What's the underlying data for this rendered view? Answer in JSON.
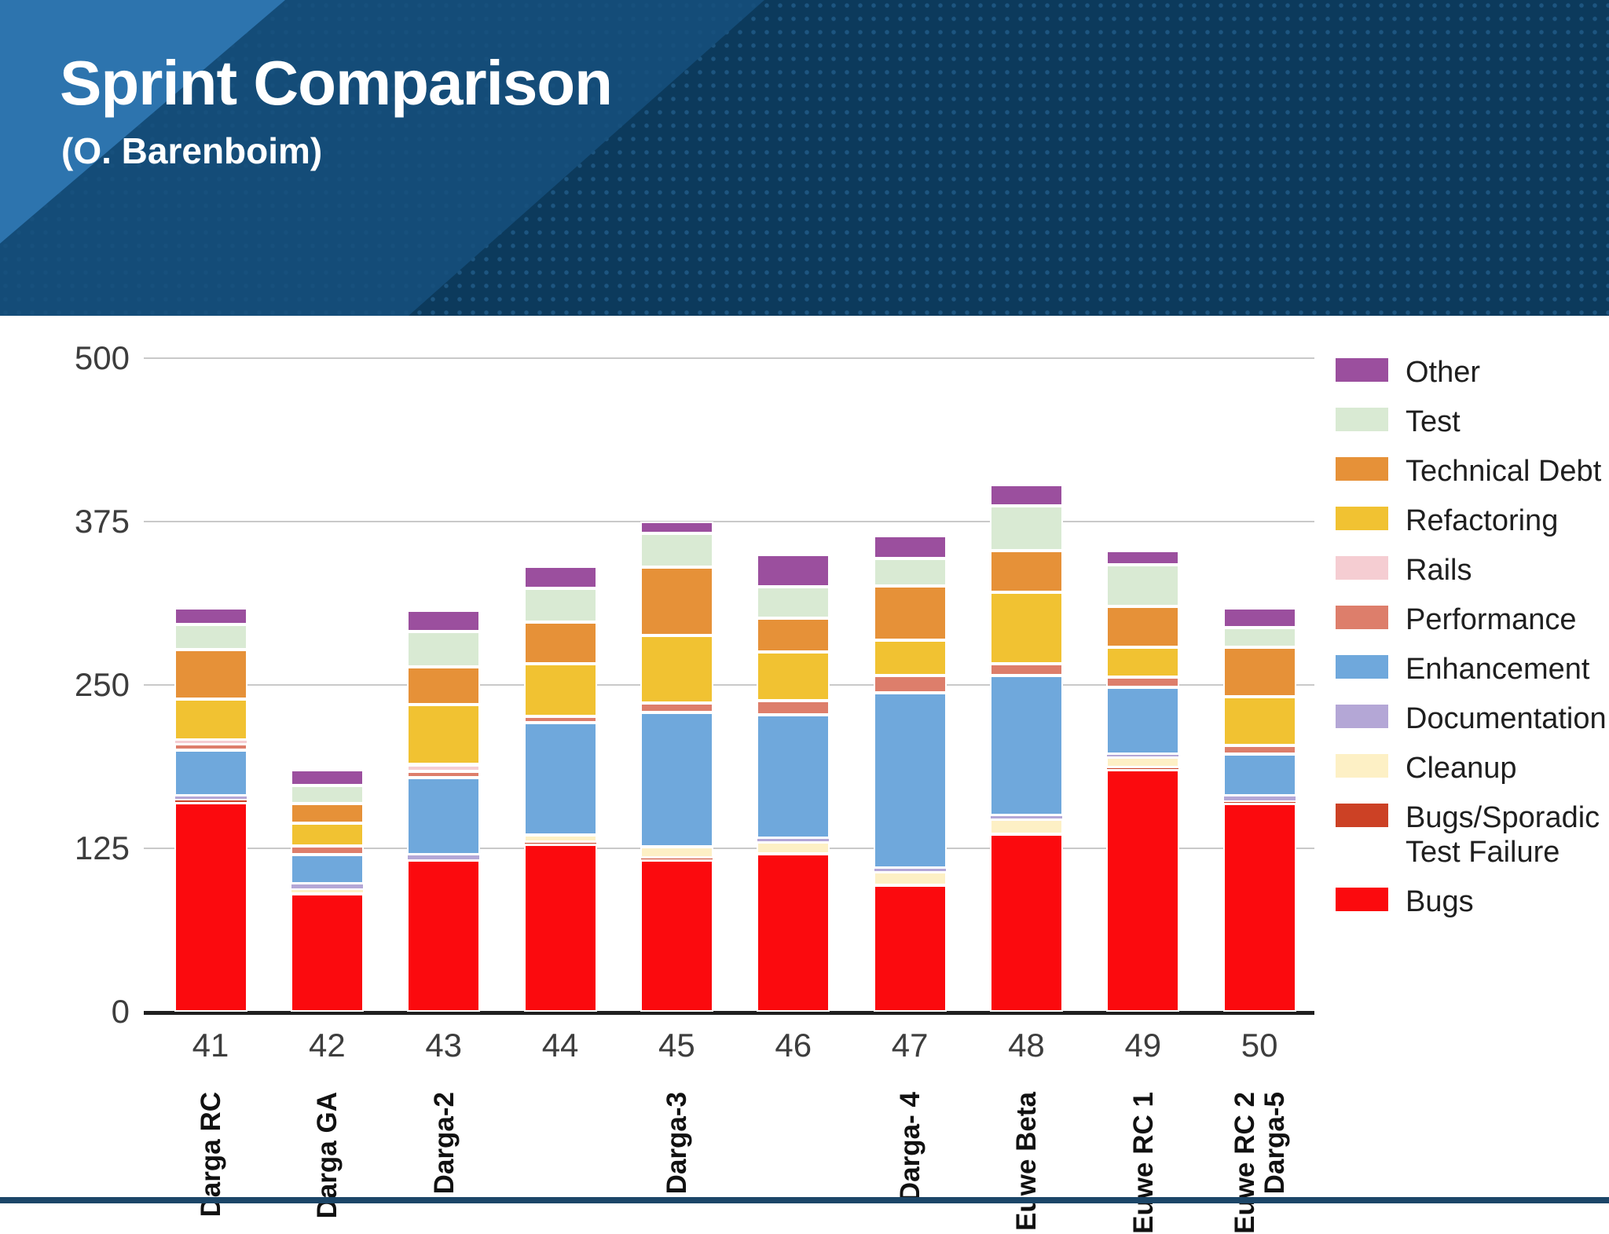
{
  "slide": {
    "title": "Sprint Comparison",
    "subtitle": "(O. Barenboim)"
  },
  "theme": {
    "header_bg": "#0c3a5c",
    "header_band_mid": "#16507d",
    "header_band_light": "#2d74ae",
    "header_dot": "#1d5580",
    "footer_line": "#1c4668",
    "axis_line": "#1f1f1f",
    "gridline": "#c9c9c9",
    "tick_text": "#3d3d3d",
    "label_text": "#111111",
    "legend_text": "#1f1f1f",
    "background": "#ffffff"
  },
  "chart_data": {
    "type": "bar",
    "stacked": true,
    "title": "",
    "xlabel": "",
    "ylabel": "",
    "ylim": [
      0,
      500
    ],
    "yticks": [
      0,
      125,
      250,
      375,
      500
    ],
    "grid": true,
    "legend_position": "right",
    "categories": [
      "41",
      "42",
      "43",
      "44",
      "45",
      "46",
      "47",
      "48",
      "49",
      "50"
    ],
    "category_sublabels": [
      [
        "Darga RC"
      ],
      [
        "Darga GA"
      ],
      [
        "Darga-2"
      ],
      [],
      [
        "Darga-3"
      ],
      [],
      [
        "Darga- 4"
      ],
      [
        "Euwe Beta"
      ],
      [
        "Euwe RC 1"
      ],
      [
        "Euwe RC 2",
        "Darga-5"
      ]
    ],
    "series": [
      {
        "name": "Bugs",
        "color": "#fb0a0e",
        "values": [
          160,
          90,
          116,
          128,
          116,
          121,
          97,
          136,
          185,
          159
        ]
      },
      {
        "name": "Bugs/Sporadic Test Failure",
        "color": "#cc4125",
        "values": [
          2,
          1,
          0,
          2,
          2,
          0,
          0,
          0,
          2,
          2
        ]
      },
      {
        "name": "Cleanup",
        "color": "#fdf0c5",
        "values": [
          0,
          3,
          0,
          5,
          8,
          9,
          10,
          11,
          8,
          0
        ]
      },
      {
        "name": "Documentation",
        "color": "#b4a7d6",
        "values": [
          3,
          4,
          4,
          0,
          0,
          3,
          3,
          3,
          2,
          4
        ]
      },
      {
        "name": "Enhancement",
        "color": "#6fa8dc",
        "values": [
          35,
          22,
          59,
          86,
          103,
          94,
          134,
          107,
          51,
          32
        ]
      },
      {
        "name": "Performance",
        "color": "#dd7e6b",
        "values": [
          5,
          7,
          5,
          5,
          7,
          11,
          13,
          9,
          8,
          7
        ]
      },
      {
        "name": "Rails",
        "color": "#f5cdd2",
        "values": [
          3,
          0,
          5,
          0,
          0,
          0,
          0,
          0,
          0,
          0
        ]
      },
      {
        "name": "Refactoring",
        "color": "#f1c232",
        "values": [
          31,
          17,
          46,
          40,
          52,
          37,
          27,
          55,
          23,
          37
        ]
      },
      {
        "name": "Technical Debt",
        "color": "#e69138",
        "values": [
          38,
          15,
          29,
          32,
          52,
          26,
          42,
          32,
          31,
          38
        ]
      },
      {
        "name": "Test",
        "color": "#d9ead3",
        "values": [
          19,
          14,
          27,
          26,
          26,
          24,
          21,
          34,
          32,
          15
        ]
      },
      {
        "name": "Other",
        "color": "#9b4f9e",
        "values": [
          13,
          12,
          16,
          17,
          9,
          25,
          17,
          16,
          11,
          15
        ]
      }
    ],
    "legend_entries": [
      {
        "label": "Other",
        "color": "#9b4f9e"
      },
      {
        "label": "Test",
        "color": "#d9ead3"
      },
      {
        "label": "Technical Debt",
        "color": "#e69138"
      },
      {
        "label": "Refactoring",
        "color": "#f1c232"
      },
      {
        "label": "Rails",
        "color": "#f5cdd2"
      },
      {
        "label": "Performance",
        "color": "#dd7e6b"
      },
      {
        "label": "Enhancement",
        "color": "#6fa8dc"
      },
      {
        "label": "Documentation",
        "color": "#b4a7d6"
      },
      {
        "label": "Cleanup",
        "color": "#fdf0c5"
      },
      {
        "label": "Bugs/Sporadic\nTest Failure",
        "color": "#cc4125"
      },
      {
        "label": "Bugs",
        "color": "#fb0a0e"
      }
    ]
  }
}
